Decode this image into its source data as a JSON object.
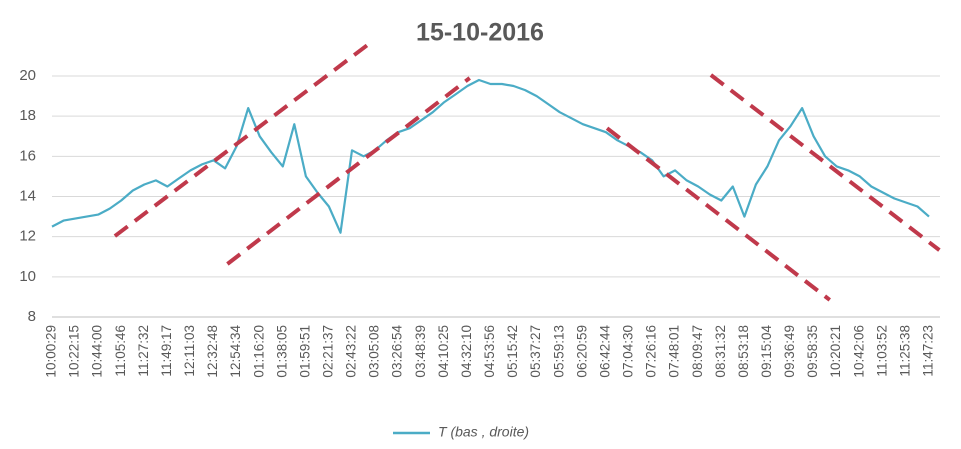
{
  "chart_data": {
    "type": "line",
    "title": "15-10-2016",
    "categories": [
      "10:00:29",
      null,
      "10:22:15",
      null,
      "10:44:00",
      null,
      "11:05:46",
      null,
      "11:27:32",
      null,
      "11:49:17",
      null,
      "12:11:03",
      null,
      "12:32:48",
      null,
      "12:54:34",
      null,
      "01:16:20",
      null,
      "01:38:05",
      null,
      "01:59:51",
      null,
      "02:21:37",
      null,
      "02:43:22",
      null,
      "03:05:08",
      null,
      "03:26:54",
      null,
      "03:48:39",
      null,
      "04:10:25",
      null,
      "04:32:10",
      null,
      "04:53:56",
      null,
      "05:15:42",
      null,
      "05:37:27",
      null,
      "05:59:13",
      null,
      "06:20:59",
      null,
      "06:42:44",
      null,
      "07:04:30",
      null,
      "07:26:16",
      null,
      "07:48:01",
      null,
      "08:09:47",
      null,
      "08:31:32",
      null,
      "08:53:18",
      null,
      "09:15:04",
      null,
      "09:36:49",
      null,
      "09:58:35",
      null,
      "10:20:21",
      null,
      "10:42:06",
      null,
      "11:03:52",
      null,
      "11:25:38",
      null,
      "11:47:23"
    ],
    "series": [
      {
        "name": "T (bas , droite)",
        "color": "#4bacc6",
        "values": [
          12.5,
          12.8,
          12.9,
          13.0,
          13.1,
          13.4,
          13.8,
          14.3,
          14.6,
          14.8,
          14.5,
          14.9,
          15.3,
          15.6,
          15.8,
          15.4,
          16.5,
          18.4,
          17.0,
          16.2,
          15.5,
          17.6,
          15.0,
          14.2,
          13.5,
          12.2,
          16.3,
          16.0,
          16.3,
          16.8,
          17.2,
          17.4,
          17.8,
          18.2,
          18.7,
          19.1,
          19.5,
          19.8,
          19.6,
          19.6,
          19.5,
          19.3,
          19.0,
          18.6,
          18.2,
          17.9,
          17.6,
          17.4,
          17.2,
          16.8,
          16.5,
          16.2,
          15.8,
          15.0,
          15.3,
          14.8,
          14.5,
          14.1,
          13.8,
          14.5,
          13.0,
          14.6,
          15.5,
          16.8,
          17.5,
          18.4,
          17.0,
          16.0,
          15.5,
          15.3,
          15.0,
          14.5,
          14.2,
          13.9,
          13.7,
          13.5,
          13.0
        ]
      }
    ],
    "trend_lines": [
      {
        "color": "#c0394b",
        "x": [
          5.45,
          27.7
        ],
        "y": [
          12.03,
          21.7
        ]
      },
      {
        "color": "#c0394b",
        "x": [
          15.2,
          36.2
        ],
        "y": [
          10.64,
          19.9
        ]
      },
      {
        "color": "#c0394b",
        "x": [
          48.1,
          67.4
        ],
        "y": [
          17.4,
          8.85
        ]
      },
      {
        "color": "#c0394b",
        "x": [
          57.1,
          76.9
        ],
        "y": [
          20.05,
          11.33
        ]
      }
    ],
    "ylim": [
      8,
      20
    ],
    "yticks": [
      8,
      10,
      12,
      14,
      16,
      18,
      20
    ],
    "grid": true,
    "legend": "bottom"
  }
}
